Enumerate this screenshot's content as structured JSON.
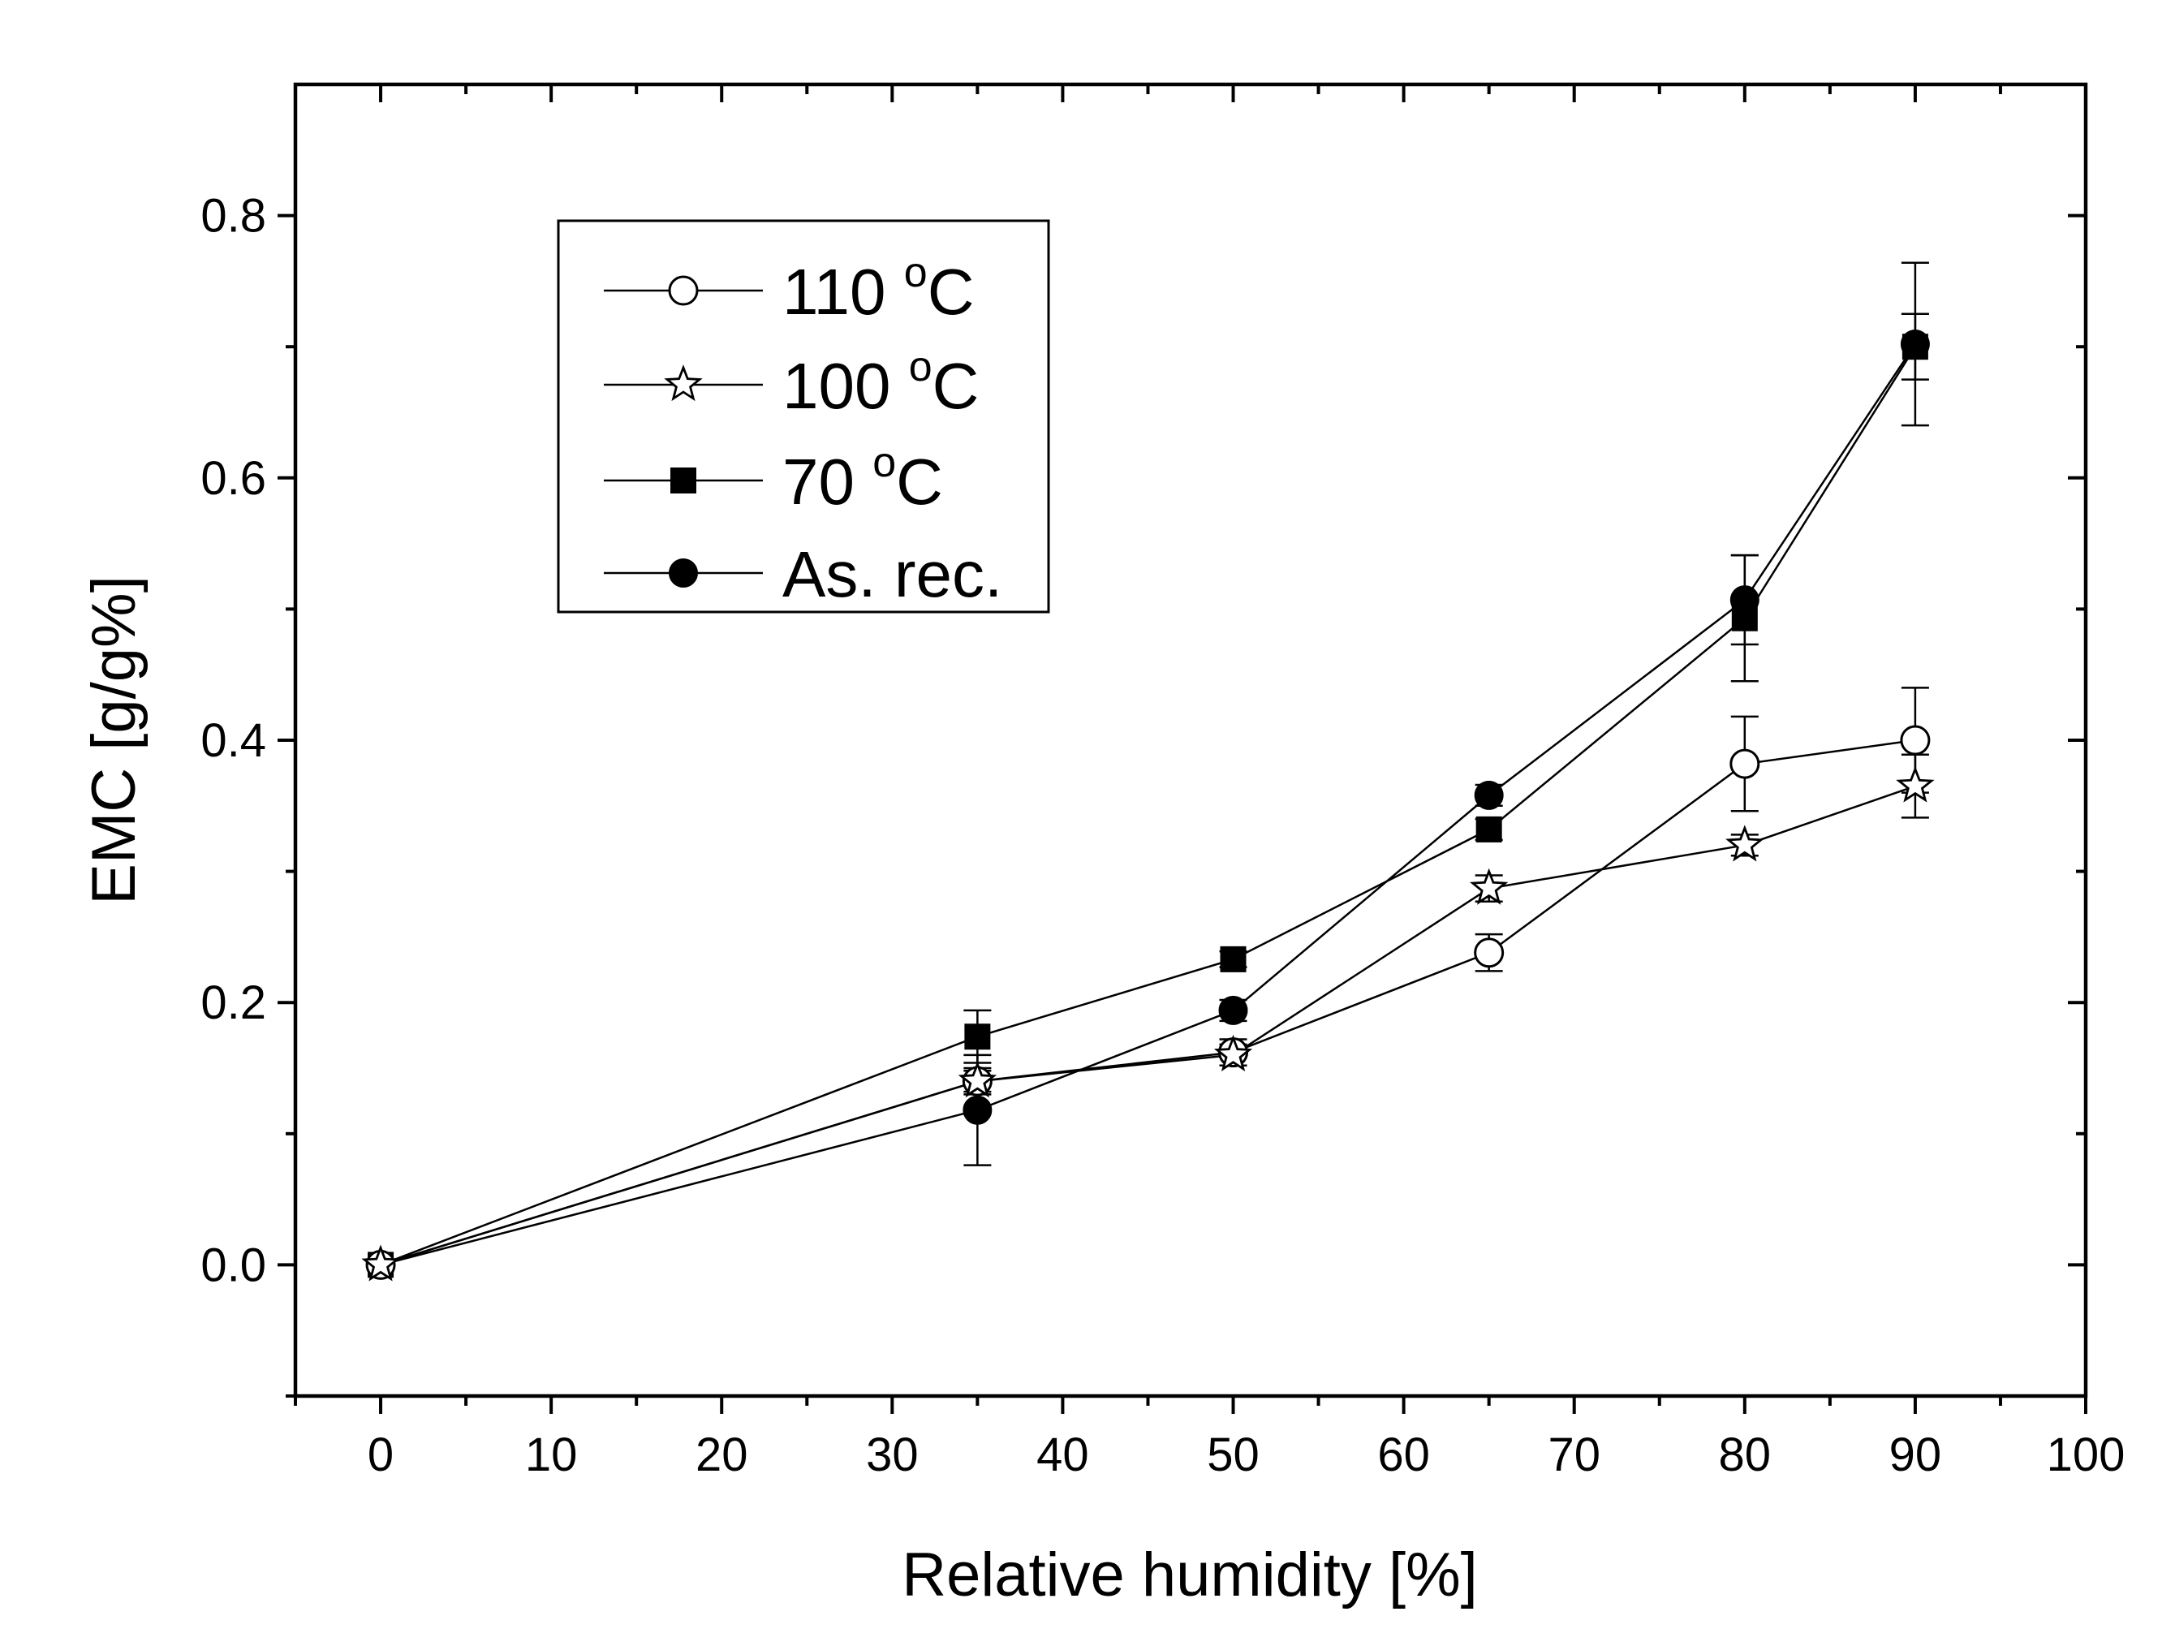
{
  "chart_data": {
    "type": "line",
    "title": "",
    "xlabel": "Relative humidity [%]",
    "ylabel": "EMC [g/g%]",
    "xlim": [
      -5,
      100
    ],
    "ylim": [
      -0.1,
      0.9
    ],
    "x_ticks": [
      0,
      10,
      20,
      30,
      40,
      50,
      60,
      70,
      80,
      90,
      100
    ],
    "y_ticks": [
      0.0,
      0.2,
      0.4,
      0.6,
      0.8
    ],
    "x_tick_labels": [
      "0",
      "10",
      "20",
      "30",
      "40",
      "50",
      "60",
      "70",
      "80",
      "90",
      "100"
    ],
    "y_tick_labels": [
      "0.0",
      "0.2",
      "0.4",
      "0.6",
      "0.8"
    ],
    "legend_position": "top-left",
    "degree_symbol": "o",
    "series": [
      {
        "name": "110 °C",
        "label_num": "110",
        "unit": "C",
        "marker": "open-circle",
        "x": [
          0,
          35,
          50,
          65,
          80,
          90
        ],
        "values": [
          0.0,
          0.14,
          0.162,
          0.238,
          0.382,
          0.4
        ],
        "errors": [
          0.0,
          0.01,
          0.01,
          0.014,
          0.036,
          0.04
        ]
      },
      {
        "name": "100 °C",
        "label_num": "100",
        "unit": "C",
        "marker": "open-star",
        "x": [
          0,
          35,
          50,
          65,
          80,
          90
        ],
        "values": [
          0.0,
          0.14,
          0.16,
          0.287,
          0.32,
          0.365
        ],
        "errors": [
          0.0,
          0.008,
          0.008,
          0.01,
          0.008,
          0.024
        ]
      },
      {
        "name": "70 °C",
        "label_num": "70",
        "unit": "C",
        "marker": "filled-square",
        "x": [
          0,
          35,
          50,
          65,
          80,
          90
        ],
        "values": [
          0.0,
          0.174,
          0.233,
          0.332,
          0.493,
          0.7
        ],
        "errors": [
          0.0,
          0.02,
          0.006,
          0.008,
          0.048,
          0.025
        ]
      },
      {
        "name": "As. rec.",
        "label_num": "As. rec.",
        "unit": "",
        "marker": "filled-circle",
        "x": [
          0,
          35,
          50,
          65,
          80,
          90
        ],
        "values": [
          0.0,
          0.118,
          0.194,
          0.358,
          0.507,
          0.702
        ],
        "errors": [
          0.0,
          0.042,
          0.008,
          0.008,
          0.034,
          0.062
        ]
      }
    ]
  }
}
